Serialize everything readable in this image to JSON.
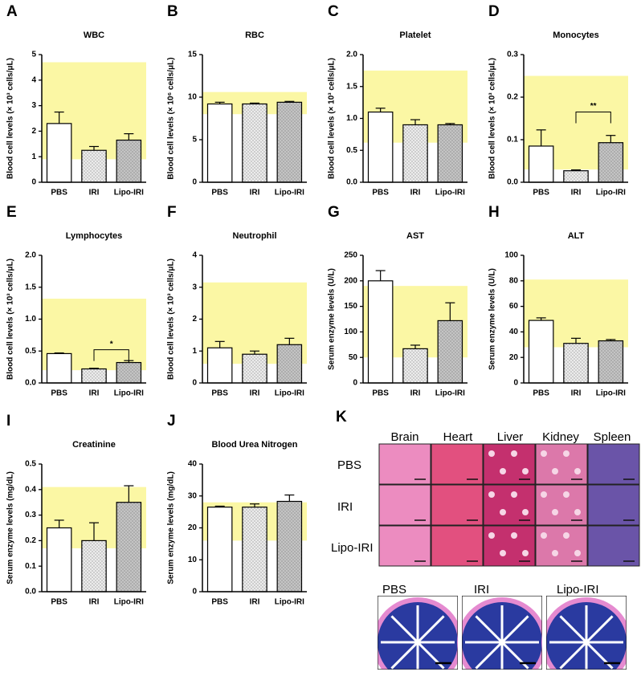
{
  "chart_data": [
    {
      "type": "bar",
      "panel": "A",
      "title": "WBC",
      "ylabel": "Blood cell levels (× 10³ cells/μL)",
      "categories": [
        "PBS",
        "IRI",
        "Lipo-IRI"
      ],
      "values": [
        2.3,
        1.25,
        1.65
      ],
      "errors": [
        0.45,
        0.15,
        0.25
      ],
      "colors": [
        "#ffffff",
        "#ececec",
        "#c4c4c4"
      ],
      "reference_range": [
        0.9,
        4.7
      ],
      "reference_color": "#fbf7a4",
      "ylim": [
        0,
        5
      ],
      "yticks": [
        0,
        1,
        2,
        3,
        4,
        5
      ]
    },
    {
      "type": "bar",
      "panel": "B",
      "title": "RBC",
      "ylabel": "Blood cell levels (× 10⁶ cells/μL)",
      "categories": [
        "PBS",
        "IRI",
        "Lipo-IRI"
      ],
      "values": [
        9.2,
        9.2,
        9.4
      ],
      "errors": [
        0.2,
        0.1,
        0.1
      ],
      "colors": [
        "#ffffff",
        "#ececec",
        "#c4c4c4"
      ],
      "reference_range": [
        8.0,
        10.6
      ],
      "reference_color": "#fbf7a4",
      "ylim": [
        0,
        15
      ],
      "yticks": [
        0,
        5,
        10,
        15
      ]
    },
    {
      "type": "bar",
      "panel": "C",
      "title": "Platelet",
      "ylabel": "Blood cell levels (× 10³ cells/μL)",
      "categories": [
        "PBS",
        "IRI",
        "Lipo-IRI"
      ],
      "values": [
        1.1,
        0.9,
        0.9
      ],
      "errors": [
        0.06,
        0.08,
        0.02
      ],
      "colors": [
        "#ffffff",
        "#ececec",
        "#c4c4c4"
      ],
      "reference_range": [
        0.62,
        1.75
      ],
      "reference_color": "#fbf7a4",
      "ylim": [
        0,
        2
      ],
      "yticks": [
        {
          "value": 0,
          "label": "0.0"
        },
        0.5,
        {
          "value": 1,
          "label": "1.0"
        },
        1.5,
        {
          "value": 2,
          "label": "2.0"
        }
      ]
    },
    {
      "type": "bar",
      "panel": "D",
      "title": "Monocytes",
      "ylabel": "Blood cell levels (× 10³ cells/μL)",
      "categories": [
        "PBS",
        "IRI",
        "Lipo-IRI"
      ],
      "values": [
        0.085,
        0.027,
        0.093
      ],
      "errors": [
        0.038,
        0.002,
        0.017
      ],
      "colors": [
        "#ffffff",
        "#ececec",
        "#c4c4c4"
      ],
      "reference_range": [
        0.03,
        0.25
      ],
      "reference_color": "#fbf7a4",
      "ylim": [
        0,
        0.3
      ],
      "yticks": [
        {
          "value": 0,
          "label": "0.0"
        },
        0.1,
        0.2,
        0.3
      ],
      "significance": {
        "between": [
          1,
          2
        ],
        "y": 0.165,
        "label": "**"
      }
    },
    {
      "type": "bar",
      "panel": "E",
      "title": "Lymphocytes",
      "ylabel": "Blood cell levels (× 10³ cells/μL)",
      "categories": [
        "PBS",
        "IRI",
        "Lipo-IRI"
      ],
      "values": [
        0.46,
        0.22,
        0.32
      ],
      "errors": [
        0.01,
        0.01,
        0.03
      ],
      "colors": [
        "#ffffff",
        "#ececec",
        "#c4c4c4"
      ],
      "reference_range": [
        0.2,
        1.32
      ],
      "reference_color": "#fbf7a4",
      "ylim": [
        0,
        2
      ],
      "yticks": [
        {
          "value": 0,
          "label": "0.0"
        },
        0.5,
        {
          "value": 1,
          "label": "1.0"
        },
        1.5,
        {
          "value": 2,
          "label": "2.0"
        }
      ],
      "significance": {
        "between": [
          1,
          2
        ],
        "y": 0.52,
        "label": "*"
      }
    },
    {
      "type": "bar",
      "panel": "F",
      "title": "Neutrophil",
      "ylabel": "Blood cell levels (× 10³ cells/μL)",
      "categories": [
        "PBS",
        "IRI",
        "Lipo-IRI"
      ],
      "values": [
        1.1,
        0.9,
        1.2
      ],
      "errors": [
        0.2,
        0.1,
        0.2
      ],
      "colors": [
        "#ffffff",
        "#ececec",
        "#c4c4c4"
      ],
      "reference_range": [
        0.6,
        3.15
      ],
      "reference_color": "#fbf7a4",
      "ylim": [
        0,
        4
      ],
      "yticks": [
        0,
        1,
        2,
        3,
        4
      ]
    },
    {
      "type": "bar",
      "panel": "G",
      "title": "AST",
      "ylabel": "Serum enzyme levels (U/L)",
      "categories": [
        "PBS",
        "IRI",
        "Lipo-IRI"
      ],
      "values": [
        200,
        67,
        122
      ],
      "errors": [
        20,
        7,
        35
      ],
      "colors": [
        "#ffffff",
        "#ececec",
        "#c4c4c4"
      ],
      "reference_range": [
        50,
        190
      ],
      "reference_color": "#fbf7a4",
      "ylim": [
        0,
        250
      ],
      "yticks": [
        0,
        50,
        100,
        150,
        200,
        250
      ]
    },
    {
      "type": "bar",
      "panel": "H",
      "title": "ALT",
      "ylabel": "Serum enzyme levels (U/L)",
      "categories": [
        "PBS",
        "IRI",
        "Lipo-IRI"
      ],
      "values": [
        49,
        31,
        33
      ],
      "errors": [
        2,
        4,
        1
      ],
      "colors": [
        "#ffffff",
        "#ececec",
        "#c4c4c4"
      ],
      "reference_range": [
        28,
        81
      ],
      "reference_color": "#fbf7a4",
      "ylim": [
        0,
        100
      ],
      "yticks": [
        0,
        20,
        40,
        60,
        80,
        100
      ]
    },
    {
      "type": "bar",
      "panel": "I",
      "title": "Creatinine",
      "ylabel": "Serum enzyme levels (mg/dL)",
      "categories": [
        "PBS",
        "IRI",
        "Lipo-IRI"
      ],
      "values": [
        0.25,
        0.2,
        0.35
      ],
      "errors": [
        0.03,
        0.07,
        0.065
      ],
      "colors": [
        "#ffffff",
        "#ececec",
        "#c4c4c4"
      ],
      "reference_range": [
        0.17,
        0.41
      ],
      "reference_color": "#fbf7a4",
      "ylim": [
        0,
        0.5
      ],
      "yticks": [
        {
          "value": 0,
          "label": "0.0"
        },
        0.1,
        0.2,
        0.3,
        0.4,
        0.5
      ]
    },
    {
      "type": "bar",
      "panel": "J",
      "title": "Blood Urea Nitrogen",
      "ylabel": "Serum enzyme levels (mg/dL)",
      "categories": [
        "PBS",
        "IRI",
        "Lipo-IRI"
      ],
      "values": [
        26.5,
        26.5,
        28.3
      ],
      "errors": [
        0.3,
        1,
        2
      ],
      "colors": [
        "#ffffff",
        "#ececec",
        "#c4c4c4"
      ],
      "reference_range": [
        16,
        28
      ],
      "reference_color": "#fbf7a4",
      "ylim": [
        0,
        40
      ],
      "yticks": [
        0,
        10,
        20,
        30,
        40
      ]
    }
  ],
  "panel_k": {
    "label": "K",
    "organs": [
      "Brain",
      "Heart",
      "Liver",
      "Kidney",
      "Spleen"
    ],
    "groups": [
      "PBS",
      "IRI",
      "Lipo-IRI"
    ],
    "colon_groups": [
      "PBS",
      "IRI",
      "Lipo-IRI"
    ]
  }
}
